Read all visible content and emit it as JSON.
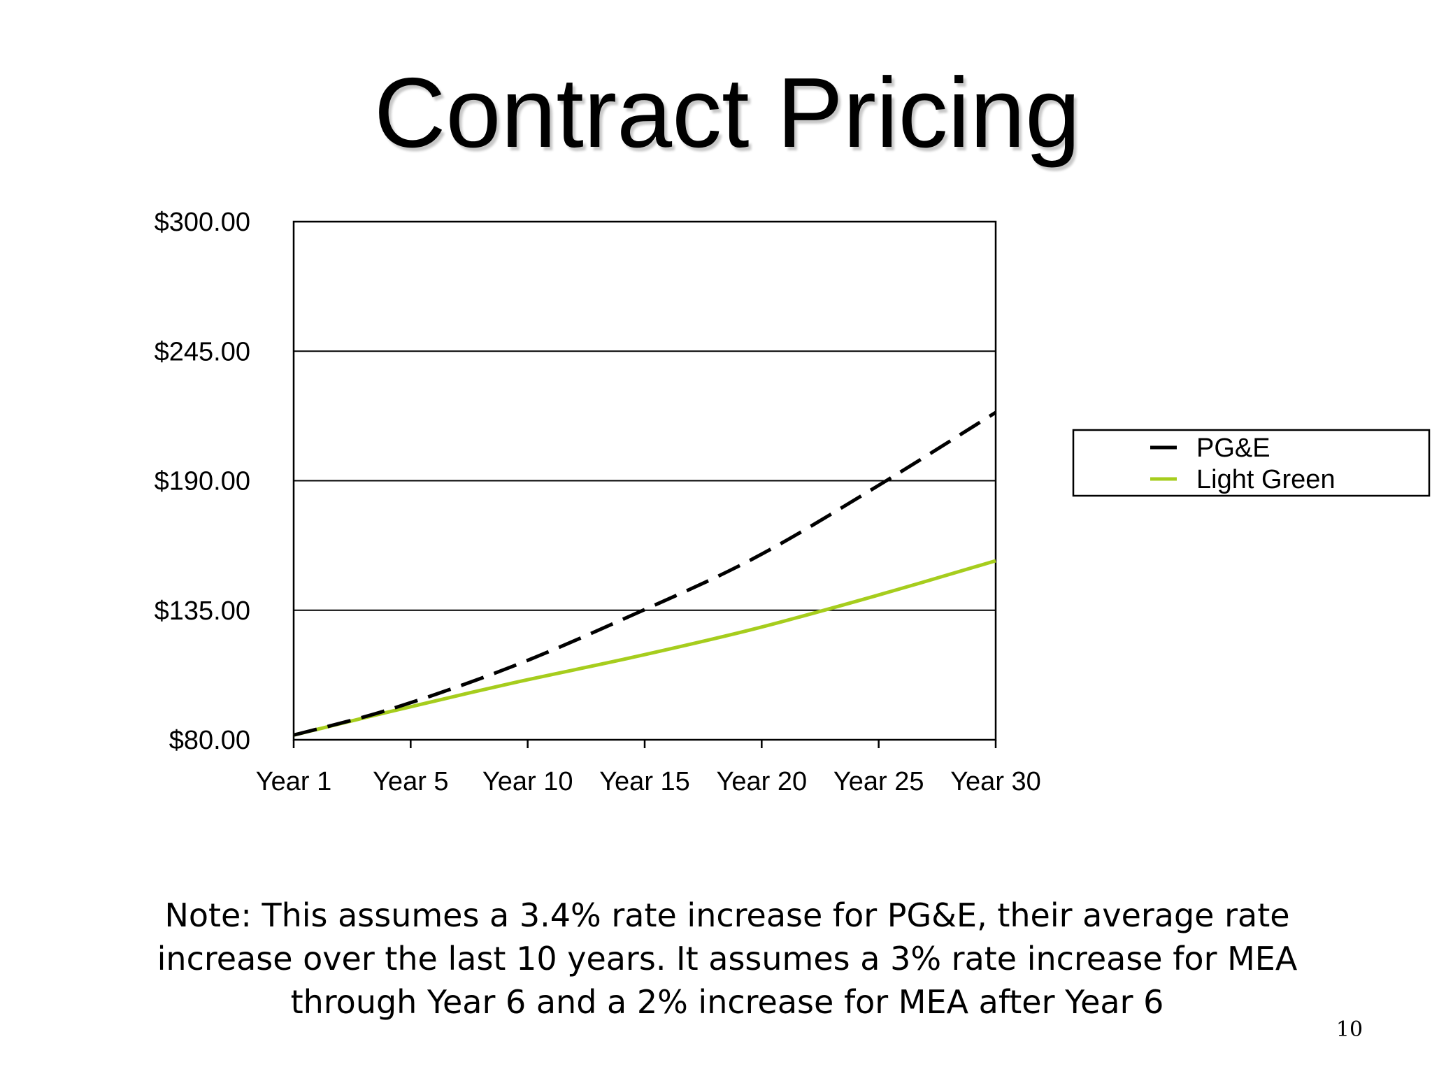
{
  "slide": {
    "title": "Contract Pricing",
    "note": "Note: This assumes a 3.4% rate increase for PG&E, their average rate increase over the last 10 years. It assumes a 3% rate increase for MEA through Year 6 and a 2% increase for MEA after Year 6",
    "page_number": "10"
  },
  "chart_data": {
    "type": "line",
    "title": "",
    "xlabel": "",
    "ylabel": "",
    "categories": [
      "Year 1",
      "Year 5",
      "Year 10",
      "Year 15",
      "Year 20",
      "Year 25",
      "Year 30"
    ],
    "x_range": [
      1,
      30
    ],
    "ylim": [
      80,
      300
    ],
    "y_ticks": [
      80,
      135,
      190,
      245,
      300
    ],
    "y_tick_labels": [
      "$80.00",
      "$135.00",
      "$190.00",
      "$245.00",
      "$300.00"
    ],
    "grid": "horizontal",
    "legend": "right",
    "series": [
      {
        "name": "PG&E",
        "color": "#000000",
        "style": "dashed",
        "x": [
          1,
          5,
          10,
          15,
          20,
          25,
          30
        ],
        "y": [
          82,
          93,
          111,
          133,
          157,
          187,
          219
        ]
      },
      {
        "name": "Light Green",
        "color": "#a6cd1d",
        "style": "solid",
        "x": [
          1,
          5,
          10,
          15,
          20,
          25,
          30
        ],
        "y": [
          82,
          92,
          104,
          115,
          127,
          141,
          156
        ]
      }
    ]
  }
}
